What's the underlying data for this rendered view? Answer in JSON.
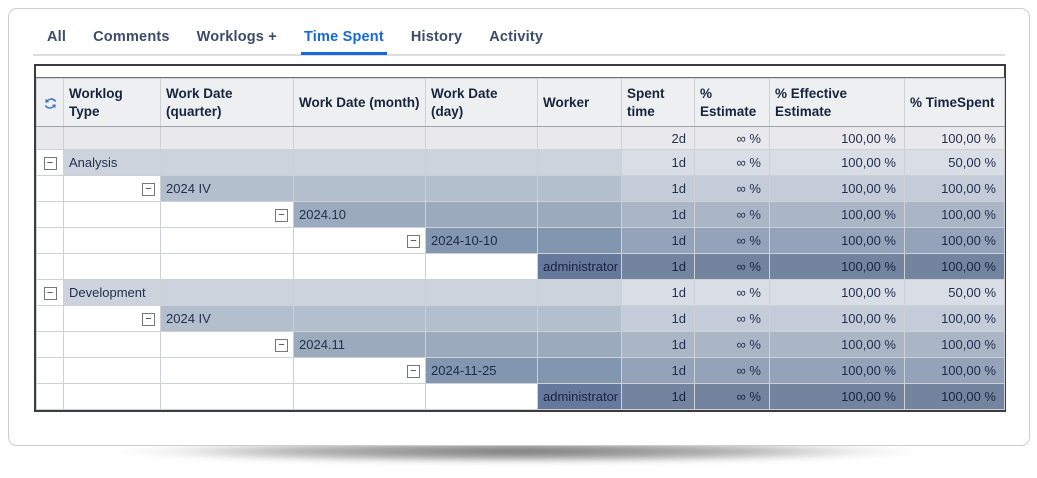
{
  "tabs": [
    {
      "label": "All",
      "active": false
    },
    {
      "label": "Comments",
      "active": false
    },
    {
      "label": "Worklogs +",
      "active": false
    },
    {
      "label": "Time Spent",
      "active": true
    },
    {
      "label": "History",
      "active": false
    },
    {
      "label": "Activity",
      "active": false
    }
  ],
  "colors": {
    "active_tab": "#1668dc",
    "inactive_tab": "#3b4c6b",
    "header_bg": "#eeeff1",
    "level_label_bg": [
      "#e9e9ed",
      "#ccd3dd",
      "#b4bfcd",
      "#9caabd",
      "#8296af",
      "#66789b"
    ],
    "level_value_bg": [
      "#e9e9ed",
      "#d9dee6",
      "#c3ccd8",
      "#aab6c6",
      "#94a3b9",
      "#73849f"
    ],
    "refresh_icon": "#4273be"
  },
  "table": {
    "toolbar_icon": "refresh-icon",
    "expander_glyph": "−",
    "columns": [
      "Worklog Type",
      "Work Date (quarter)",
      "Work Date (month)",
      "Work Date (day)",
      "Worker",
      "Spent time",
      "% Estimate",
      "% Effective Estimate",
      "% TimeSpent"
    ],
    "rows": [
      {
        "level": 0,
        "label": "",
        "collapsible": false,
        "spent": "2d",
        "estimate": "∞ %",
        "effective": "100,00 %",
        "timespent": "100,00 %"
      },
      {
        "level": 1,
        "label": "Analysis",
        "collapsible": true,
        "spent": "1d",
        "estimate": "∞ %",
        "effective": "100,00 %",
        "timespent": "50,00 %"
      },
      {
        "level": 2,
        "label": "2024 IV",
        "collapsible": true,
        "spent": "1d",
        "estimate": "∞ %",
        "effective": "100,00 %",
        "timespent": "100,00 %"
      },
      {
        "level": 3,
        "label": "2024.10",
        "collapsible": true,
        "spent": "1d",
        "estimate": "∞ %",
        "effective": "100,00 %",
        "timespent": "100,00 %"
      },
      {
        "level": 4,
        "label": "2024-10-10",
        "collapsible": true,
        "spent": "1d",
        "estimate": "∞ %",
        "effective": "100,00 %",
        "timespent": "100,00 %"
      },
      {
        "level": 5,
        "label": "administrator",
        "collapsible": false,
        "spent": "1d",
        "estimate": "∞ %",
        "effective": "100,00 %",
        "timespent": "100,00 %"
      },
      {
        "level": 1,
        "label": "Development",
        "collapsible": true,
        "spent": "1d",
        "estimate": "∞ %",
        "effective": "100,00 %",
        "timespent": "50,00 %"
      },
      {
        "level": 2,
        "label": "2024 IV",
        "collapsible": true,
        "spent": "1d",
        "estimate": "∞ %",
        "effective": "100,00 %",
        "timespent": "100,00 %"
      },
      {
        "level": 3,
        "label": "2024.11",
        "collapsible": true,
        "spent": "1d",
        "estimate": "∞ %",
        "effective": "100,00 %",
        "timespent": "100,00 %"
      },
      {
        "level": 4,
        "label": "2024-11-25",
        "collapsible": true,
        "spent": "1d",
        "estimate": "∞ %",
        "effective": "100,00 %",
        "timespent": "100,00 %"
      },
      {
        "level": 5,
        "label": "administrator",
        "collapsible": false,
        "spent": "1d",
        "estimate": "∞ %",
        "effective": "100,00 %",
        "timespent": "100,00 %"
      }
    ]
  }
}
